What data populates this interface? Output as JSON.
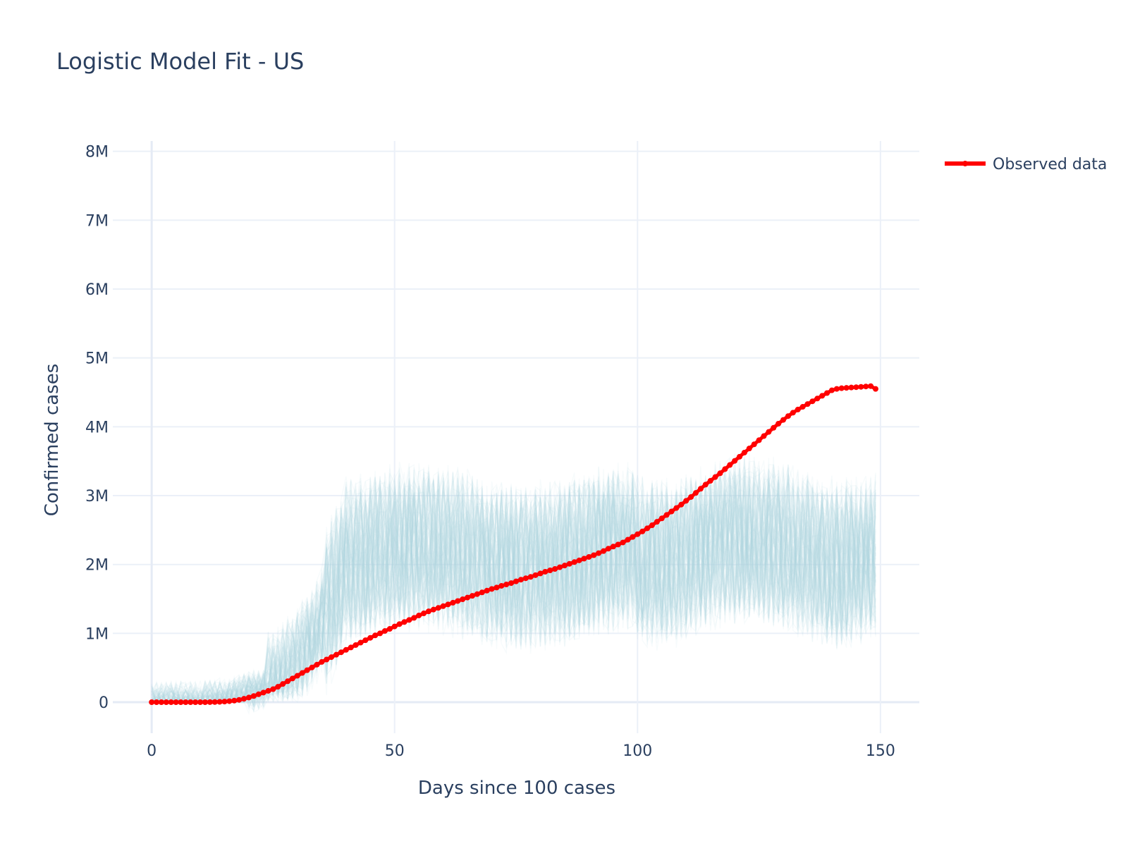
{
  "chart_data": {
    "type": "line",
    "title": "Logistic Model Fit - US",
    "xlabel": "Days since 100 cases",
    "ylabel": "Confirmed cases",
    "xlim": [
      -8,
      158
    ],
    "ylim": [
      -450000,
      8150000
    ],
    "xticks": [
      0,
      50,
      100,
      150
    ],
    "xtick_labels": [
      "0",
      "50",
      "100",
      "150"
    ],
    "yticks": [
      0,
      1000000,
      2000000,
      3000000,
      4000000,
      5000000,
      6000000,
      7000000,
      8000000
    ],
    "ytick_labels": [
      "0",
      "1M",
      "2M",
      "3M",
      "4M",
      "5M",
      "6M",
      "7M",
      "8M"
    ],
    "grid": true,
    "legend": "right",
    "colors": {
      "observed": "#ff0000",
      "samples": "#add8e6",
      "grid": "#ebf0f8",
      "text": "#2a3f5f"
    },
    "series": [
      {
        "name": "Observed data",
        "mode": "lines+markers",
        "x": [
          0,
          1,
          2,
          3,
          4,
          5,
          6,
          7,
          8,
          9,
          10,
          11,
          12,
          13,
          14,
          15,
          16,
          17,
          18,
          19,
          20,
          21,
          22,
          23,
          24,
          25,
          26,
          27,
          28,
          29,
          30,
          31,
          32,
          33,
          34,
          35,
          36,
          37,
          38,
          39,
          40,
          41,
          42,
          43,
          44,
          45,
          46,
          47,
          48,
          49,
          50,
          51,
          52,
          53,
          54,
          55,
          56,
          57,
          58,
          59,
          60,
          61,
          62,
          63,
          64,
          65,
          66,
          67,
          68,
          69,
          70,
          71,
          72,
          73,
          74,
          75,
          76,
          77,
          78,
          79,
          80,
          81,
          82,
          83,
          84,
          85,
          86,
          87,
          88,
          89,
          90,
          91,
          92,
          93,
          94,
          95,
          96,
          97,
          98,
          99,
          100,
          101,
          102,
          103,
          104,
          105,
          106,
          107,
          108,
          109,
          110,
          111,
          112,
          113,
          114,
          115,
          116,
          117,
          118,
          119,
          120,
          121,
          122,
          123,
          124,
          125,
          126,
          127,
          128,
          129,
          130,
          131,
          132,
          133,
          134,
          135,
          136,
          137,
          138,
          139,
          140,
          141,
          142,
          143,
          144,
          145,
          146,
          147,
          148,
          149
        ],
        "y": [
          0,
          0,
          0,
          0,
          0,
          0,
          0,
          0,
          0,
          0,
          0,
          500,
          1200,
          2500,
          5000,
          9000,
          15000,
          23000,
          34000,
          50000,
          68000,
          90000,
          115000,
          140000,
          165000,
          190000,
          225000,
          265000,
          305000,
          345000,
          385000,
          425000,
          465000,
          505000,
          545000,
          585000,
          620000,
          655000,
          690000,
          725000,
          760000,
          795000,
          830000,
          865000,
          900000,
          935000,
          970000,
          1000000,
          1035000,
          1065000,
          1100000,
          1135000,
          1165000,
          1195000,
          1225000,
          1260000,
          1290000,
          1320000,
          1345000,
          1370000,
          1395000,
          1420000,
          1445000,
          1470000,
          1495000,
          1520000,
          1545000,
          1570000,
          1595000,
          1620000,
          1645000,
          1665000,
          1690000,
          1710000,
          1730000,
          1755000,
          1780000,
          1800000,
          1820000,
          1845000,
          1870000,
          1895000,
          1915000,
          1935000,
          1960000,
          1985000,
          2010000,
          2035000,
          2060000,
          2085000,
          2110000,
          2135000,
          2165000,
          2195000,
          2230000,
          2260000,
          2290000,
          2320000,
          2360000,
          2400000,
          2440000,
          2480000,
          2525000,
          2570000,
          2620000,
          2670000,
          2720000,
          2770000,
          2820000,
          2870000,
          2925000,
          2980000,
          3040000,
          3100000,
          3160000,
          3215000,
          3270000,
          3325000,
          3385000,
          3445000,
          3505000,
          3565000,
          3625000,
          3685000,
          3745000,
          3805000,
          3865000,
          3925000,
          3985000,
          4045000,
          4100000,
          4155000,
          4205000,
          4250000,
          4290000,
          4330000,
          4370000,
          4410000,
          4450000,
          4490000,
          4530000,
          4550000,
          4560000,
          4565000,
          4570000,
          4575000,
          4580000,
          4585000,
          4590000,
          4550000
        ]
      }
    ],
    "sample_band": {
      "count": 120,
      "start_rise": 24,
      "plateau_start": 40,
      "center": [
        2000000,
        2500000,
        2300000
      ],
      "spread": 1500000
    }
  }
}
